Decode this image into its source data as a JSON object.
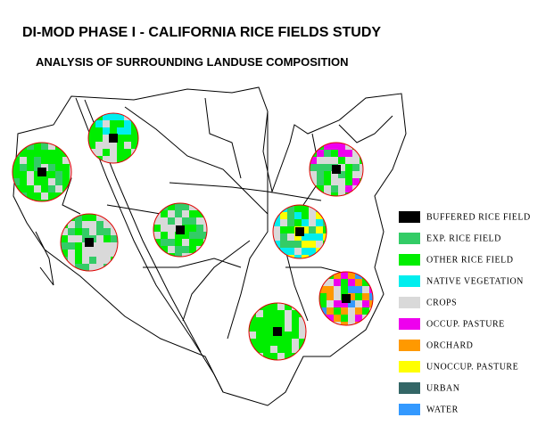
{
  "header": {
    "title": "DI-MOD PHASE I - CALIFORNIA RICE FIELDS STUDY",
    "subtitle": "ANALYSIS OF SURROUNDING LANDUSE COMPOSITION"
  },
  "legend": [
    {
      "label": "BUFFERED RICE FIELD",
      "color": "#000000"
    },
    {
      "label": "EXP. RICE FIELD",
      "color": "#33cc66"
    },
    {
      "label": "OTHER RICE FIELD",
      "color": "#00ee00"
    },
    {
      "label": "NATIVE VEGETATION",
      "color": "#00eeee"
    },
    {
      "label": "CROPS",
      "color": "#d9d9d9"
    },
    {
      "label": "OCCUP. PASTURE",
      "color": "#ee00ee"
    },
    {
      "label": "ORCHARD",
      "color": "#ff9900"
    },
    {
      "label": "UNOCCUP. PASTURE",
      "color": "#ffff00"
    },
    {
      "label": "URBAN",
      "color": "#336666"
    },
    {
      "label": "WATER",
      "color": "#3399ff"
    }
  ]
}
